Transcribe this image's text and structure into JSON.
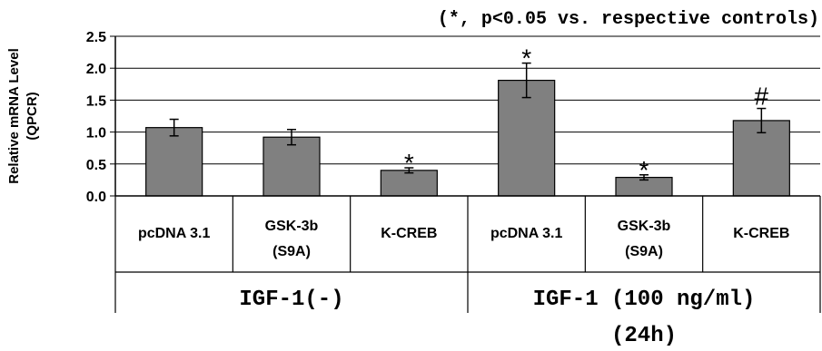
{
  "chart_data": {
    "type": "bar",
    "annotation": "(*, p<0.05 vs. respective controls)",
    "ylabel": [
      "Relative mRNA Level",
      "(QPCR)"
    ],
    "ylim": [
      0,
      2.5
    ],
    "yticks": [
      "0.0",
      "0.5",
      "1.0",
      "1.5",
      "2.0",
      "2.5"
    ],
    "grid": true,
    "bar_color": "#808080",
    "categories": [
      [
        "pcDNA 3.1"
      ],
      [
        "GSK-3b",
        "(S9A)"
      ],
      [
        "K-CREB"
      ],
      [
        "pcDNA 3.1"
      ],
      [
        "GSK-3b",
        "(S9A)"
      ],
      [
        "K-CREB"
      ]
    ],
    "values": [
      1.07,
      0.92,
      0.4,
      1.81,
      0.29,
      1.18
    ],
    "errors": [
      0.13,
      0.12,
      0.04,
      0.27,
      0.04,
      0.19
    ],
    "significance": [
      "",
      "",
      "*",
      "*",
      "*",
      "#"
    ],
    "groups": [
      {
        "label": [
          "IGF-1(-)"
        ],
        "categories": [
          0,
          1,
          2
        ]
      },
      {
        "label": [
          "IGF-1 (100 ng/ml)",
          "(24h)"
        ],
        "categories": [
          3,
          4,
          5
        ]
      }
    ]
  }
}
